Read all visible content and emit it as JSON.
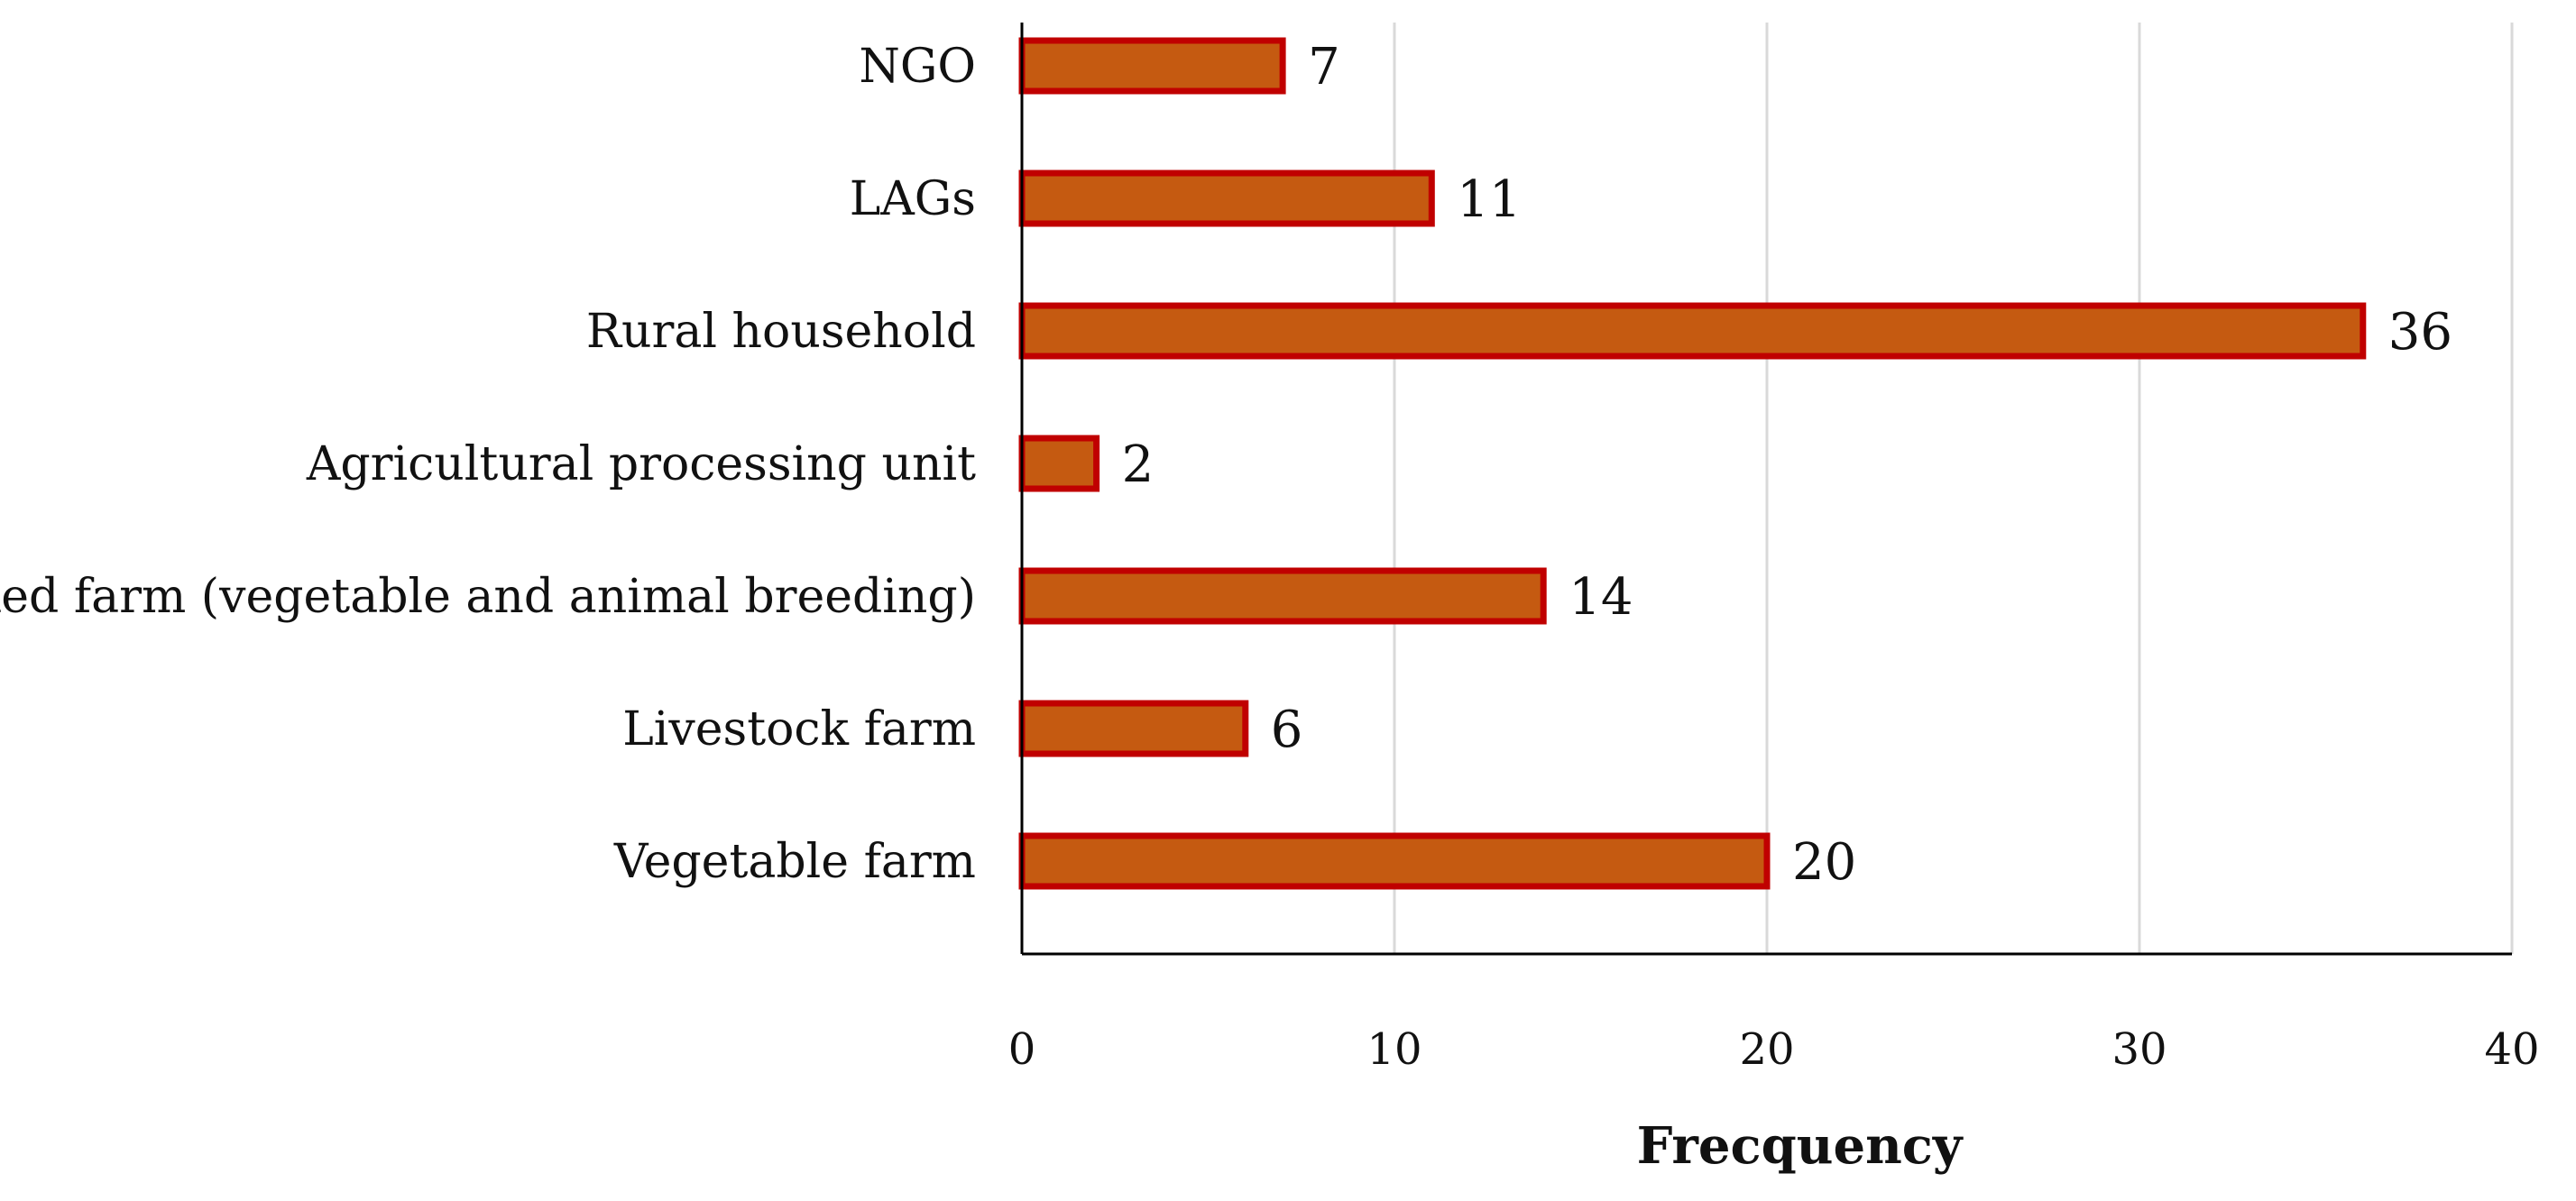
{
  "chart_data": {
    "type": "bar",
    "orientation": "horizontal",
    "title": "",
    "xlabel": "Frecquency",
    "ylabel": "",
    "categories": [
      "NGO",
      "LAGs",
      "Rural household",
      "Agricultural processing unit",
      "Mixed farm (vegetable and animal breeding)",
      "Livestock farm",
      "Vegetable farm"
    ],
    "values": [
      7,
      11,
      36,
      2,
      14,
      6,
      20
    ],
    "xlim": [
      0,
      40
    ],
    "xticks": [
      0,
      10,
      20,
      30,
      40
    ],
    "grid": "vertical",
    "bar_fill": "#c55a11",
    "bar_stroke": "#c00000",
    "grid_color": "#d9d9d9",
    "axis_color": "#000000"
  }
}
